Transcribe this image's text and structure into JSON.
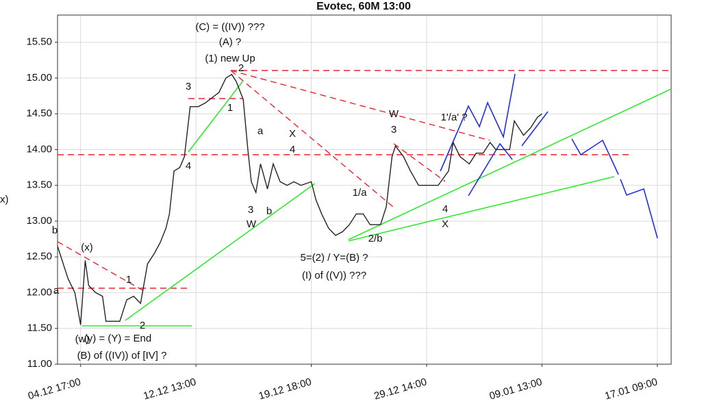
{
  "chart_data": {
    "type": "line",
    "title": "Evotec, 60M 13:00",
    "ylabel": "x)",
    "x": [
      -2.0,
      -1.7,
      -1.1,
      -0.5,
      0,
      0.4,
      0.7,
      1.3,
      1.9,
      2.2,
      2.8,
      3.4,
      4.0,
      4.6,
      5.2,
      5.8,
      6.4,
      6.9,
      7.4,
      7.7,
      8.1,
      8.6,
      9.0,
      9.5,
      10.2,
      10.8,
      12.0,
      12.6,
      13.1,
      13.5,
      14.1,
      14.5,
      14.8,
      15.2,
      15.6,
      16.2,
      16.7,
      17.3,
      17.9,
      18.5,
      19.1,
      20.0,
      20.4,
      20.9,
      21.5,
      22.1,
      22.7,
      23.3,
      23.9,
      24.5,
      25.1,
      26.0,
      26.5,
      27.0,
      27.3,
      28.0,
      28.6,
      29.3,
      30.1,
      31.0,
      31.9,
      32.3,
      32.9,
      33.7,
      34.3,
      34.9,
      35.5,
      36.0,
      36.6,
      37.2,
      37.6,
      38.4,
      39.0,
      39.6,
      40.0
    ],
    "series": [
      {
        "name": "Evotec",
        "color": "#222222",
        "values": [
          12.65,
          12.5,
          12.2,
          12.0,
          11.55,
          12.45,
          12.1,
          12.0,
          11.95,
          11.6,
          11.6,
          11.6,
          11.9,
          11.95,
          11.85,
          12.4,
          12.55,
          12.7,
          12.9,
          13.1,
          13.7,
          13.75,
          13.9,
          14.6,
          14.6,
          14.65,
          14.8,
          15.0,
          15.05,
          14.95,
          14.7,
          14.0,
          13.55,
          13.4,
          13.8,
          13.45,
          13.8,
          13.55,
          13.5,
          13.55,
          13.5,
          13.55,
          13.3,
          13.1,
          12.9,
          12.8,
          12.85,
          12.95,
          13.1,
          13.1,
          12.95,
          12.95,
          13.2,
          13.9,
          14.05,
          13.9,
          13.7,
          13.5,
          13.5,
          13.5,
          13.7,
          14.1,
          13.9,
          13.8,
          13.95,
          13.95,
          14.1,
          14.0,
          14.0,
          14.0,
          14.4,
          14.2,
          14.3,
          14.45,
          14.5
        ]
      }
    ],
    "xlim": [
      -2.0,
      51.2
    ],
    "xticks": [
      {
        "value": 0,
        "label": "04.12 17:00"
      },
      {
        "value": 10,
        "label": "12.12 13:00"
      },
      {
        "value": 20,
        "label": "19.12 18:00"
      },
      {
        "value": 30,
        "label": "29.12 14:00"
      },
      {
        "value": 40,
        "label": "09.01 13:00"
      },
      {
        "value": 50,
        "label": "17.01 09:00"
      }
    ],
    "ylim": [
      11.0,
      15.88
    ],
    "yticks": [
      {
        "value": 11,
        "label": "11.00"
      },
      {
        "value": 11.5,
        "label": "11.50"
      },
      {
        "value": 12,
        "label": "12.00"
      },
      {
        "value": 12.5,
        "label": "12.50"
      },
      {
        "value": 13,
        "label": "13.00"
      },
      {
        "value": 13.5,
        "label": "13.50"
      },
      {
        "value": 14,
        "label": "14.00"
      },
      {
        "value": 14.5,
        "label": "14.50"
      },
      {
        "value": 15,
        "label": "15.00"
      },
      {
        "value": 15.5,
        "label": "15.50"
      }
    ],
    "grid": true,
    "annotations": [
      "(C) = ((IV)) ???",
      "(A) ?",
      "(1) new Up",
      "2",
      "3",
      "1",
      "4",
      "a",
      "X",
      "4",
      "3",
      "W",
      "b",
      "1/a",
      "2/b",
      "5=(2) / Y=(B) ?",
      "(I) of ((V)) ???",
      "W",
      "3",
      "1'/a' ?",
      "4",
      "X",
      "(x)",
      "1",
      "2",
      "(w)",
      "(y) = (Y) = End",
      "(B) of ((IV)) of [IV] ?",
      "b",
      "a"
    ]
  }
}
